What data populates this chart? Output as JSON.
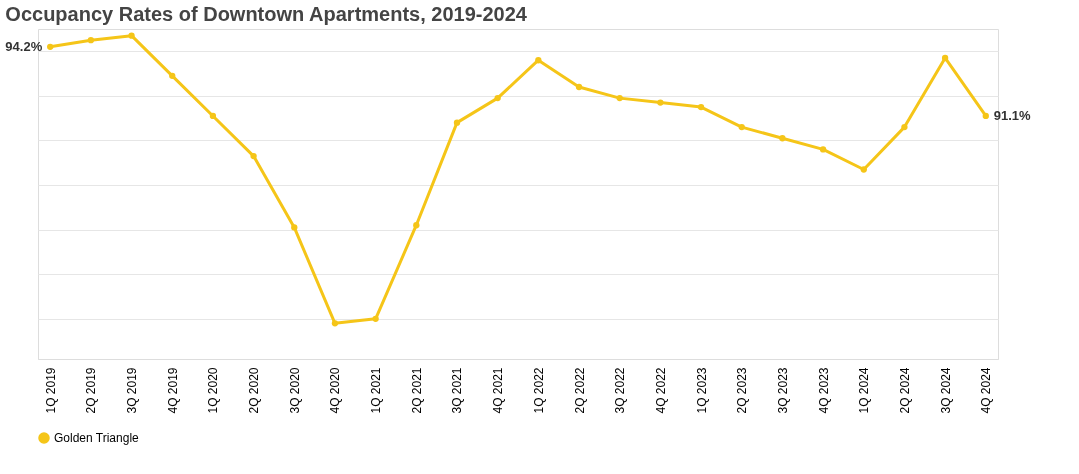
{
  "chart_data": {
    "type": "line",
    "title": "Occupancy Rates of Downtown Apartments, 2019-2024",
    "categories": [
      "1Q 2019",
      "2Q 2019",
      "3Q 2019",
      "4Q 2019",
      "1Q 2020",
      "2Q 2020",
      "3Q 2020",
      "4Q 2020",
      "1Q 2021",
      "2Q 2021",
      "3Q 2021",
      "4Q 2021",
      "1Q 2022",
      "2Q 2022",
      "3Q 2022",
      "4Q 2022",
      "1Q 2023",
      "2Q 2023",
      "3Q 2023",
      "4Q 2023",
      "1Q 2024",
      "2Q 2024",
      "3Q 2024",
      "4Q 2024"
    ],
    "series": [
      {
        "name": "Golden Triangle",
        "color": "#f5c518",
        "values": [
          94.2,
          94.5,
          94.7,
          92.9,
          91.1,
          89.3,
          86.1,
          81.8,
          82.0,
          86.2,
          90.8,
          91.9,
          93.6,
          92.4,
          91.9,
          91.7,
          91.5,
          90.6,
          90.1,
          89.6,
          88.7,
          90.6,
          93.7,
          91.1
        ],
        "value_labels": [
          "94.2%",
          null,
          null,
          null,
          null,
          null,
          null,
          null,
          null,
          null,
          null,
          null,
          null,
          null,
          null,
          null,
          null,
          null,
          null,
          null,
          null,
          null,
          null,
          "91.1%"
        ]
      }
    ],
    "ylim": [
      80.2,
      95.0
    ],
    "tick_labels": "x",
    "marker": "circle",
    "line_style": "solid",
    "grid": "y",
    "legend": "bottom"
  }
}
